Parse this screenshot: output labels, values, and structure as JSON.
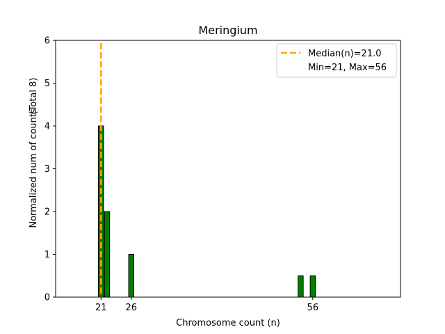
{
  "chart_data": {
    "type": "bar",
    "title": "Meringium",
    "xlabel": "Chromosome count (n)",
    "ylabel": "Normalized num of counts",
    "ylabel_note": "(Total 8)",
    "xlim": [
      13.5,
      70.5
    ],
    "ylim": [
      0,
      6
    ],
    "yticks": [
      0,
      1,
      2,
      3,
      4,
      5,
      6
    ],
    "xticks": [
      21,
      26,
      56
    ],
    "bar_color": "#008000",
    "bar_edge_color": "#000000",
    "median_color": "#ffa500",
    "median": 21.0,
    "bars": [
      {
        "x": 21,
        "value": 4
      },
      {
        "x": 22,
        "value": 2
      },
      {
        "x": 26,
        "value": 1
      },
      {
        "x": 54,
        "value": 0.5
      },
      {
        "x": 56,
        "value": 0.5
      }
    ],
    "legend": {
      "position": "top-right",
      "entries": [
        "Median(n)=21.0",
        "Min=21, Max=56"
      ]
    }
  }
}
